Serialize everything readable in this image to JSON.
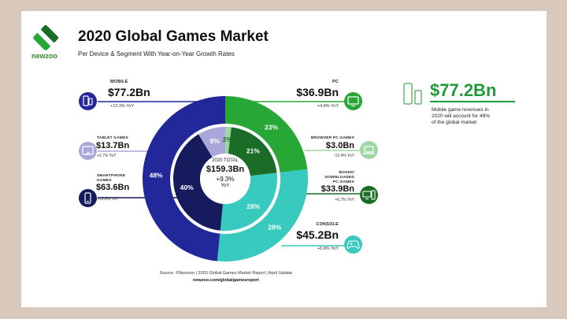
{
  "header": {
    "title": "2020 Global Games Market",
    "subtitle": "Per Device & Segment With Year-on-Year Growth Rates",
    "logo_text": "newzoo"
  },
  "colors": {
    "mobile": "#22279a",
    "mobile_light": "#a9a7d9",
    "pc": "#27a836",
    "pc_dark": "#1b6c26",
    "pc_light": "#9ed7a5",
    "console": "#38cabf",
    "inner_dark": "#151b5c",
    "accent_green": "#1f9b3a"
  },
  "left": {
    "mobile": {
      "name": "MOBILE",
      "value": "$77.2Bn",
      "growth": "+13.3% YoY",
      "icon": "phones-icon"
    },
    "tablet": {
      "name": "TABLET GAMES",
      "value": "$13.7Bn",
      "growth": "+2.7% YoY",
      "icon": "tablet-icon"
    },
    "smartphone": {
      "name_line1": "SMARTPHONE",
      "name_line2": "GAMES",
      "value": "$63.6Bn",
      "growth": "+15.8% YoY",
      "icon": "smartphone-icon"
    }
  },
  "right": {
    "pc": {
      "name": "PC",
      "value": "$36.9Bn",
      "growth": "+4.8% YoY",
      "icon": "monitor-icon"
    },
    "browser": {
      "name": "BROWSER PC GAMES",
      "value": "$3.0Bn",
      "growth": "-13.4% YoY",
      "icon": "laptop-icon"
    },
    "boxed": {
      "name_line1": "BOXED/",
      "name_line2": "DOWNLOADED",
      "name_line3": "PC GAMES",
      "value": "$33.9Bn",
      "growth": "+6.7% YoY",
      "icon": "desktop-tower-icon"
    },
    "console": {
      "name": "CONSOLE",
      "value": "$45.2Bn",
      "growth": "+6.8% YoY",
      "icon": "gamepad-icon"
    }
  },
  "highlight": {
    "value": "$77.2Bn",
    "line1": "Mobile game revenues in",
    "line2": "2020 will account for 48%",
    "line3": "of the global market",
    "icon": "devices-icon"
  },
  "center": {
    "label": "2020 TOTAL",
    "value": "$159.3Bn",
    "growth": "+9.3%",
    "unit": "YoY"
  },
  "footer": {
    "source": "Source: ©Newzoo | 2020 Global Games Market Report | April Update",
    "url": "newzoo.com/globalgamesreport"
  },
  "chart_data": {
    "type": "pie",
    "title": "2020 Global Games Market",
    "total": "$159.3Bn",
    "outer_ring": [
      {
        "name": "PC",
        "value": 36.9,
        "percent_label": "23%"
      },
      {
        "name": "Console",
        "value": 45.2,
        "percent_label": "28%"
      },
      {
        "name": "Mobile",
        "value": 77.2,
        "percent_label": "48%"
      }
    ],
    "inner_ring": [
      {
        "name": "Browser PC Games",
        "value": 3.0,
        "percent_label": "2%"
      },
      {
        "name": "Boxed/Downloaded PC Games",
        "value": 33.9,
        "percent_label": "21%"
      },
      {
        "name": "Console",
        "value": 45.2,
        "percent_label": "28%"
      },
      {
        "name": "Smartphone Games",
        "value": 63.6,
        "percent_label": "40%"
      },
      {
        "name": "Tablet Games",
        "value": 13.7,
        "percent_label": "9%"
      }
    ]
  }
}
